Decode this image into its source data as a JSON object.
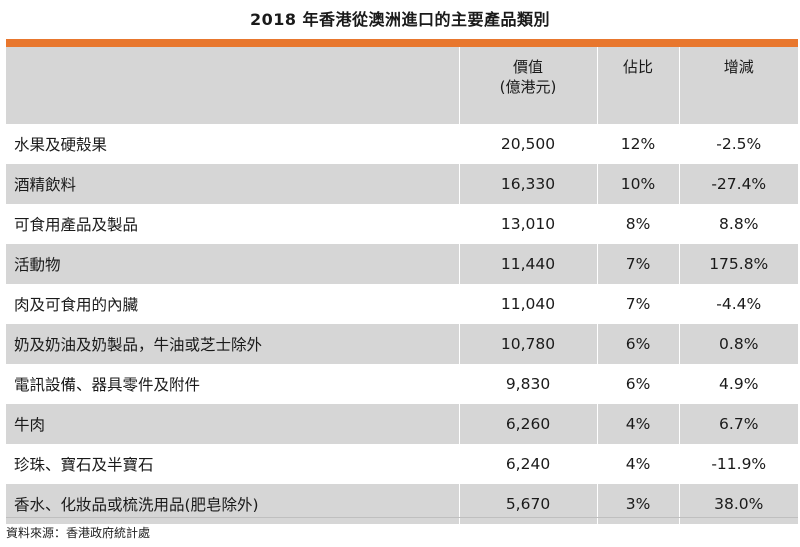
{
  "title": "2018 年香港從澳洲進口的主要產品類別",
  "header": {
    "col_value_line1": "價值",
    "col_value_line2": "(億港元)",
    "col_share": "佔比",
    "col_change": "增減"
  },
  "rows": [
    {
      "product": "水果及硬殼果",
      "value": "20,500",
      "share": "12%",
      "change": "-2.5%"
    },
    {
      "product": "酒精飲料",
      "value": "16,330",
      "share": "10%",
      "change": "-27.4%"
    },
    {
      "product": "可食用產品及製品",
      "value": "13,010",
      "share": "8%",
      "change": "8.8%"
    },
    {
      "product": "活動物",
      "value": "11,440",
      "share": "7%",
      "change": "175.8%"
    },
    {
      "product": "肉及可食用的內臟",
      "value": "11,040",
      "share": "7%",
      "change": "-4.4%"
    },
    {
      "product": "奶及奶油及奶製品，牛油或芝士除外",
      "value": "10,780",
      "share": "6%",
      "change": "0.8%"
    },
    {
      "product": "電訊設備、器具零件及附件",
      "value": "9,830",
      "share": "6%",
      "change": "4.9%"
    },
    {
      "product": "牛肉",
      "value": "6,260",
      "share": "4%",
      "change": "6.7%"
    },
    {
      "product": "珍珠、寶石及半寶石",
      "value": "6,240",
      "share": "4%",
      "change": "-11.9%"
    },
    {
      "product": "香水、化妝品或梳洗用品(肥皂除外)",
      "value": "5,670",
      "share": "3%",
      "change": "38.0%"
    }
  ],
  "source": "資料來源：香港政府統計處",
  "colors": {
    "accent": "#e8772e",
    "shade": "#d6d6d6"
  }
}
